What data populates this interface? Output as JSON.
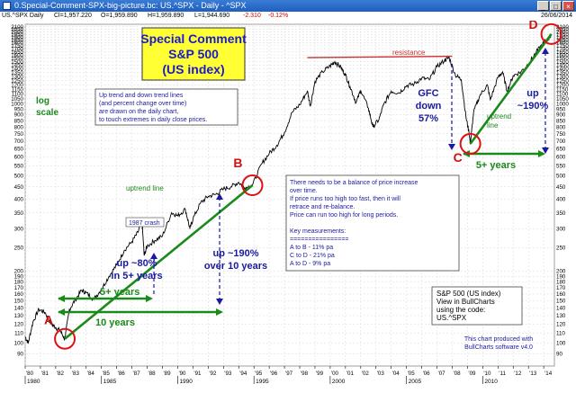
{
  "window": {
    "title": "0.Special-Comment-SPX-big-picture.bc: US.^SPX - Daily - ^SPX",
    "min_label": "_",
    "max_label": "□",
    "close_label": "×"
  },
  "infobar": {
    "symbol": "US.^SPX Daily",
    "close": "Cl=1,957.220",
    "open": "O=1,959.890",
    "high": "H=1,959.890",
    "low": "L=1,944.690",
    "change": "-2.310",
    "change_pct": "-0.12%",
    "date": "26/06/2014",
    "change_color": "#cc0000"
  },
  "chart_data": {
    "type": "line",
    "title": "Special Comment S&P 500 (US index)",
    "title_lines": [
      "Special Comment",
      "S&P 500",
      "(US  index)"
    ],
    "side_label_lines": [
      "log",
      "scale"
    ],
    "y_scale": "log",
    "ylim": [
      80,
      2150
    ],
    "xlim": [
      1980,
      2014.7
    ],
    "y_ticks": [
      90,
      100,
      110,
      120,
      130,
      140,
      150,
      160,
      170,
      180,
      190,
      200,
      250,
      300,
      350,
      400,
      450,
      500,
      550,
      600,
      650,
      700,
      750,
      800,
      850,
      900,
      950,
      1000,
      1050,
      1100,
      1150,
      1200,
      1250,
      1300,
      1350,
      1400,
      1450,
      1500,
      1550,
      1600,
      1650,
      1700,
      1750,
      1800,
      1850,
      1900,
      1950,
      2000,
      2050,
      2100
    ],
    "x_year_ticks": [
      "'80",
      "'81",
      "'82",
      "'83",
      "'84",
      "'85",
      "'86",
      "'87",
      "'88",
      "'89",
      "'90",
      "'91",
      "'92",
      "'93",
      "'94",
      "'95",
      "'96",
      "'97",
      "'98",
      "'99",
      "'00",
      "'01",
      "'02",
      "'03",
      "'04",
      "'05",
      "'06",
      "'07",
      "'08",
      "'09",
      "'10",
      "'11",
      "'12",
      "'13",
      "'14"
    ],
    "x_major_ticks": [
      {
        "year": 1980,
        "label": "1980"
      },
      {
        "year": 1985,
        "label": "1985"
      },
      {
        "year": 1990,
        "label": "1990"
      },
      {
        "year": 1995,
        "label": "1995"
      },
      {
        "year": 2000,
        "label": "2000"
      },
      {
        "year": 2005,
        "label": "2005"
      },
      {
        "year": 2010,
        "label": "2010"
      }
    ],
    "series": [
      {
        "points": [
          [
            1980.0,
            106
          ],
          [
            1980.2,
            100
          ],
          [
            1980.5,
            122
          ],
          [
            1980.9,
            138
          ],
          [
            1981.3,
            134
          ],
          [
            1981.7,
            120
          ],
          [
            1982.0,
            116
          ],
          [
            1982.3,
            112
          ],
          [
            1982.6,
            104
          ],
          [
            1982.9,
            138
          ],
          [
            1983.3,
            152
          ],
          [
            1983.7,
            166
          ],
          [
            1984.0,
            162
          ],
          [
            1984.5,
            152
          ],
          [
            1985.0,
            168
          ],
          [
            1985.5,
            190
          ],
          [
            1986.0,
            212
          ],
          [
            1986.5,
            244
          ],
          [
            1987.0,
            265
          ],
          [
            1987.4,
            290
          ],
          [
            1987.65,
            330
          ],
          [
            1987.8,
            232
          ],
          [
            1988.0,
            254
          ],
          [
            1988.5,
            268
          ],
          [
            1989.0,
            280
          ],
          [
            1989.6,
            350
          ],
          [
            1990.0,
            340
          ],
          [
            1990.5,
            362
          ],
          [
            1990.8,
            300
          ],
          [
            1991.0,
            330
          ],
          [
            1991.5,
            385
          ],
          [
            1992.0,
            410
          ],
          [
            1992.5,
            418
          ],
          [
            1993.0,
            440
          ],
          [
            1993.5,
            450
          ],
          [
            1994.0,
            470
          ],
          [
            1994.4,
            445
          ],
          [
            1994.9,
            456
          ],
          [
            1995.5,
            560
          ],
          [
            1996.0,
            620
          ],
          [
            1996.5,
            670
          ],
          [
            1997.0,
            760
          ],
          [
            1997.5,
            920
          ],
          [
            1998.0,
            990
          ],
          [
            1998.5,
            1130
          ],
          [
            1998.7,
            980
          ],
          [
            1999.0,
            1240
          ],
          [
            1999.5,
            1360
          ],
          [
            2000.0,
            1440
          ],
          [
            2000.3,
            1500
          ],
          [
            2000.7,
            1420
          ],
          [
            2001.0,
            1320
          ],
          [
            2001.3,
            1180
          ],
          [
            2001.7,
            1010
          ],
          [
            2002.0,
            1140
          ],
          [
            2002.5,
            960
          ],
          [
            2002.8,
            800
          ],
          [
            2003.2,
            860
          ],
          [
            2003.5,
            990
          ],
          [
            2004.0,
            1130
          ],
          [
            2004.5,
            1110
          ],
          [
            2005.0,
            1190
          ],
          [
            2005.5,
            1210
          ],
          [
            2006.0,
            1280
          ],
          [
            2006.5,
            1260
          ],
          [
            2007.0,
            1430
          ],
          [
            2007.5,
            1520
          ],
          [
            2007.8,
            1560
          ],
          [
            2008.2,
            1320
          ],
          [
            2008.6,
            1260
          ],
          [
            2008.9,
            880
          ],
          [
            2009.1,
            760
          ],
          [
            2009.19,
            680
          ],
          [
            2009.4,
            920
          ],
          [
            2009.8,
            1080
          ],
          [
            2010.3,
            1200
          ],
          [
            2010.5,
            1040
          ],
          [
            2011.0,
            1290
          ],
          [
            2011.3,
            1360
          ],
          [
            2011.6,
            1130
          ],
          [
            2012.0,
            1310
          ],
          [
            2012.5,
            1360
          ],
          [
            2013.0,
            1470
          ],
          [
            2013.5,
            1640
          ],
          [
            2014.0,
            1800
          ],
          [
            2014.3,
            1860
          ],
          [
            2014.5,
            1957
          ]
        ]
      }
    ],
    "trendlines": [
      {
        "name": "uptrend A-B",
        "from": [
          1982.6,
          104
        ],
        "to": [
          1994.9,
          456
        ],
        "color": "#1a8a1a"
      },
      {
        "name": "uptrend C-D",
        "from": [
          2009.19,
          680
        ],
        "to": [
          2014.5,
          1957
        ],
        "color": "#1a8a1a"
      },
      {
        "name": "resistance",
        "from": [
          1998.5,
          1560
        ],
        "to": [
          2008.0,
          1580
        ],
        "color": "#cc3333"
      }
    ],
    "circles": [
      {
        "label": "A",
        "x": 1982.6,
        "y": 104
      },
      {
        "label": "B",
        "x": 1994.9,
        "y": 456
      },
      {
        "label": "C",
        "x": 2009.19,
        "y": 680
      },
      {
        "label": "D",
        "x": 2014.5,
        "y": 1957
      }
    ],
    "annotations": {
      "resistance": "resistance",
      "crash_1987": "1987 crash",
      "uptrend_ab": "uptrend line",
      "uptrend_cd_lines": [
        "uptrend",
        "line"
      ],
      "gfc_lines": [
        "GFC",
        "down",
        "57%"
      ],
      "up_cd_lines": [
        "up",
        "~190%"
      ],
      "up_80_lines": [
        "up ~80%",
        "in 5+ years"
      ],
      "up_190_lines": [
        "up ~190%",
        "over 10 years"
      ],
      "five_years_a": "5+ years",
      "ten_years_a": "10 years",
      "five_years_c": "5+ years"
    },
    "note_trendlines": [
      "Up trend and down trend lines",
      "(and percent change over time)",
      "are drawn on the daily chart,",
      "to touch extremes in daily close prices."
    ],
    "note_balance": [
      "There needs to be a balance of price increase",
      "over time.",
      "If price runs too high too fast, then it will",
      "retrace and re-balance.",
      "Price can run too high for long periods.",
      "",
      "Key measurements:",
      "================",
      "A to B - 11% pa",
      "C to D - 21% pa",
      "A to D - 9% pa"
    ],
    "info_box": [
      "S&P 500 (US index)",
      "View in BullCharts",
      "using the code:",
      "US.^SPX"
    ],
    "credit": [
      "This chart produced with",
      "BullCharts software v4.0"
    ],
    "colors": {
      "price": "#000000",
      "trend": "#1a8a1a",
      "resistance": "#cc3333",
      "circle": "#dd1111",
      "dash": "#1a1aa0",
      "title_bg": "#ffff33",
      "title_text": "#1a1acc",
      "note_text": "#1a1aa0",
      "label_red": "#cc1111"
    }
  }
}
